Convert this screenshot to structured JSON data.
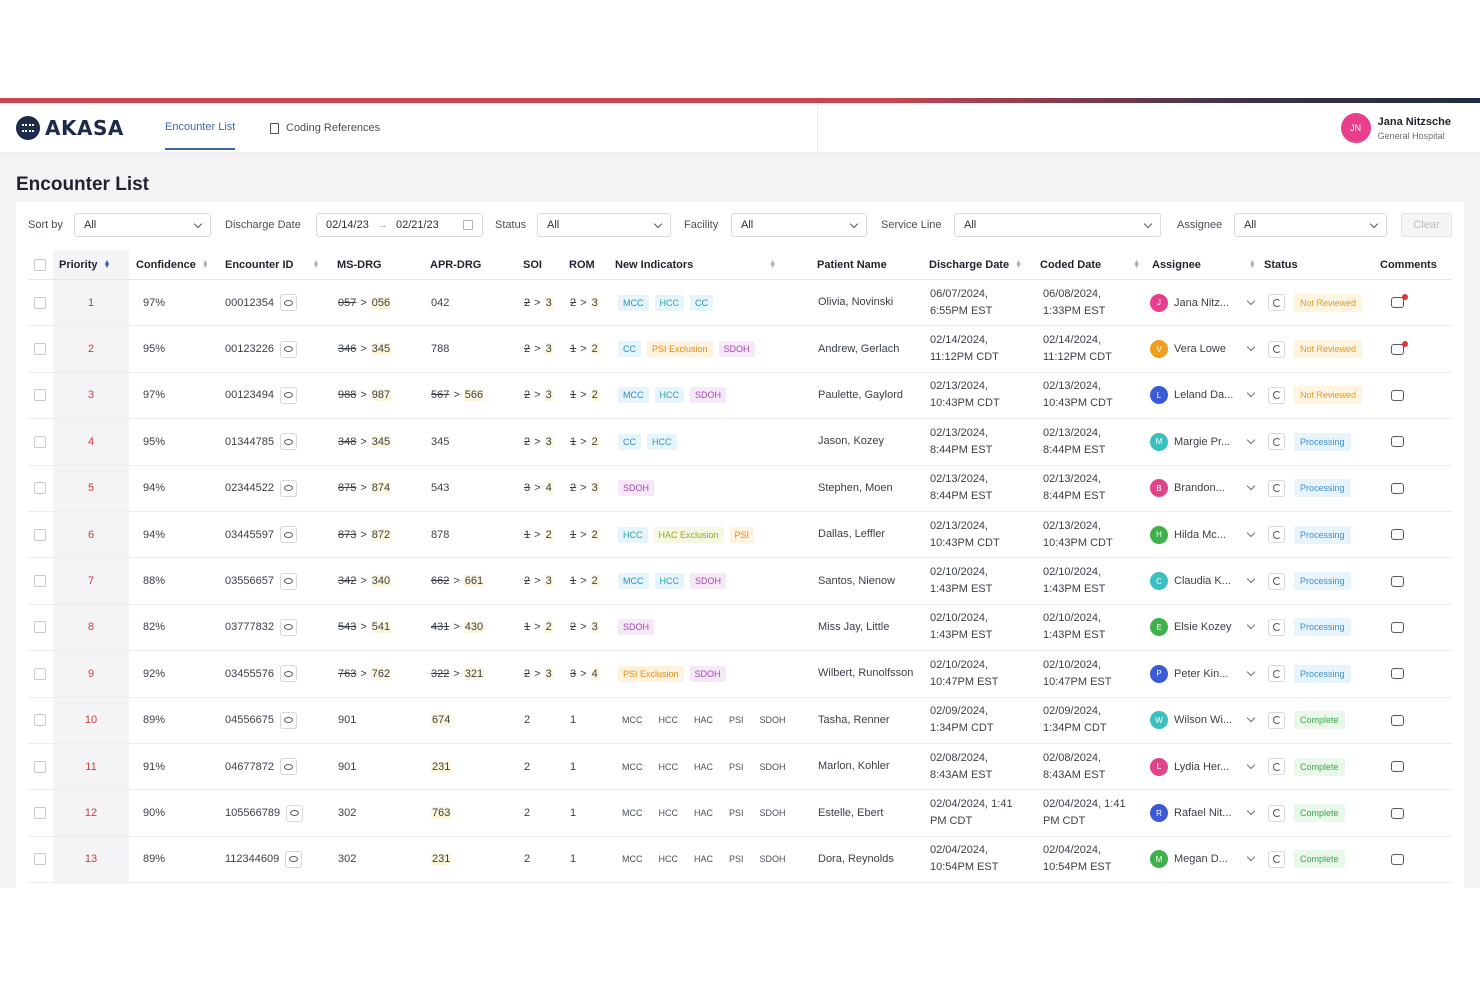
{
  "header": {
    "logo_text": "AKASA",
    "tabs": [
      {
        "label": "Encounter List",
        "active": true
      },
      {
        "label": "Coding References",
        "active": false
      }
    ],
    "user": {
      "initials": "JN",
      "name": "Jana Nitzsche",
      "org": "General Hospital",
      "avatar_color": "#e83e8c"
    }
  },
  "page": {
    "title": "Encounter List"
  },
  "filters": {
    "sort_by": {
      "label": "Sort by",
      "value": "All"
    },
    "discharge_date": {
      "label": "Discharge Date",
      "from": "02/14/23",
      "to": "02/21/23",
      "separator": "→"
    },
    "status": {
      "label": "Status",
      "value": "All"
    },
    "facility": {
      "label": "Facility",
      "value": "All"
    },
    "service_line": {
      "label": "Service Line",
      "value": "All"
    },
    "assignee": {
      "label": "Assignee",
      "value": "All"
    },
    "clear_label": "Clear"
  },
  "table": {
    "columns": [
      "Priority",
      "Confidence",
      "Encounter ID",
      "MS-DRG",
      "APR-DRG",
      "SOI",
      "ROM",
      "New Indicators",
      "Patient Name",
      "Discharge Date",
      "Coded Date",
      "Assignee",
      "Status",
      "Comments"
    ],
    "rows": [
      {
        "priority": "1",
        "confidence": "97%",
        "encounter_id": "00012354",
        "ms_drg": {
          "old": "057",
          "new": "056"
        },
        "apr_drg": {
          "value": "042"
        },
        "soi": {
          "old": "2",
          "new": "3"
        },
        "rom": {
          "old": "2",
          "new": "3"
        },
        "indicators": [
          "MCC",
          "HCC",
          "CC"
        ],
        "patient": "Olivia, Novinski",
        "discharge_date": [
          "06/07/2024,",
          "6:55PM EST"
        ],
        "coded_date": [
          "06/08/2024,",
          "1:33PM EST"
        ],
        "assignee": {
          "initial": "J",
          "name": "Jana Nitz...",
          "color": "#e83e8c"
        },
        "status": "Not Reviewed",
        "comment_alert": true
      },
      {
        "priority": "2",
        "confidence": "95%",
        "encounter_id": "00123226",
        "ms_drg": {
          "old": "346",
          "new": "345"
        },
        "apr_drg": {
          "value": "788"
        },
        "soi": {
          "old": "2",
          "new": "3"
        },
        "rom": {
          "old": "1",
          "new": "2"
        },
        "indicators": [
          "CC",
          "PSI Exclusion",
          "SDOH"
        ],
        "patient": "Andrew, Gerlach",
        "discharge_date": [
          "02/14/2024,",
          "11:12PM CDT"
        ],
        "coded_date": [
          "02/14/2024,",
          "11:12PM CDT"
        ],
        "assignee": {
          "initial": "V",
          "name": "Vera Lowe",
          "color": "#f0a020"
        },
        "status": "Not Reviewed",
        "comment_alert": true
      },
      {
        "priority": "3",
        "confidence": "97%",
        "encounter_id": "00123494",
        "ms_drg": {
          "old": "988",
          "new": "987"
        },
        "apr_drg": {
          "old": "567",
          "new": "566"
        },
        "soi": {
          "old": "2",
          "new": "3"
        },
        "rom": {
          "old": "1",
          "new": "2"
        },
        "indicators": [
          "MCC",
          "HCC",
          "SDOH"
        ],
        "patient": "Paulette, Gaylord",
        "discharge_date": [
          "02/13/2024,",
          "10:43PM CDT"
        ],
        "coded_date": [
          "02/13/2024,",
          "10:43PM CDT"
        ],
        "assignee": {
          "initial": "L",
          "name": "Leland Da...",
          "color": "#3b5bd6"
        },
        "status": "Not Reviewed",
        "comment_alert": false
      },
      {
        "priority": "4",
        "confidence": "95%",
        "encounter_id": "01344785",
        "ms_drg": {
          "old": "348",
          "new": "345"
        },
        "apr_drg": {
          "value": "345"
        },
        "soi": {
          "old": "2",
          "new": "3"
        },
        "rom": {
          "old": "1",
          "new": "2"
        },
        "indicators": [
          "CC",
          "HCC"
        ],
        "patient": "Jason, Kozey",
        "discharge_date": [
          "02/13/2024,",
          "8:44PM EST"
        ],
        "coded_date": [
          "02/13/2024,",
          "8:44PM EST"
        ],
        "assignee": {
          "initial": "M",
          "name": "Margie Pr...",
          "color": "#3cbfbf"
        },
        "status": "Processing",
        "comment_alert": false
      },
      {
        "priority": "5",
        "confidence": "94%",
        "encounter_id": "02344522",
        "ms_drg": {
          "old": "875",
          "new": "874"
        },
        "apr_drg": {
          "value": "543"
        },
        "soi": {
          "old": "3",
          "new": "4"
        },
        "rom": {
          "old": "2",
          "new": "3"
        },
        "indicators": [
          "SDOH"
        ],
        "patient": "Stephen, Moen",
        "discharge_date": [
          "02/13/2024,",
          "8:44PM EST"
        ],
        "coded_date": [
          "02/13/2024,",
          "8:44PM EST"
        ],
        "assignee": {
          "initial": "B",
          "name": "Brandon...",
          "color": "#e0458c"
        },
        "status": "Processing",
        "comment_alert": false
      },
      {
        "priority": "6",
        "confidence": "94%",
        "encounter_id": "03445597",
        "ms_drg": {
          "old": "873",
          "new": "872"
        },
        "apr_drg": {
          "value": "878"
        },
        "soi": {
          "old": "1",
          "new": "2"
        },
        "rom": {
          "old": "1",
          "new": "2"
        },
        "indicators": [
          "HCC",
          "HAC Exclusion",
          "PSI"
        ],
        "patient": "Dallas, Leffler",
        "discharge_date": [
          "02/13/2024,",
          "10:43PM CDT"
        ],
        "coded_date": [
          "02/13/2024,",
          "10:43PM CDT"
        ],
        "assignee": {
          "initial": "H",
          "name": "Hilda Mc...",
          "color": "#3fb04a"
        },
        "status": "Processing",
        "comment_alert": false
      },
      {
        "priority": "7",
        "confidence": "88%",
        "encounter_id": "03556657",
        "ms_drg": {
          "old": "342",
          "new": "340"
        },
        "apr_drg": {
          "old": "662",
          "new": "661"
        },
        "soi": {
          "old": "2",
          "new": "3"
        },
        "rom": {
          "old": "1",
          "new": "2"
        },
        "indicators": [
          "MCC",
          "HCC",
          "SDOH"
        ],
        "patient": "Santos, Nienow",
        "discharge_date": [
          "02/10/2024,",
          "1:43PM EST"
        ],
        "coded_date": [
          "02/10/2024,",
          "1:43PM EST"
        ],
        "assignee": {
          "initial": "C",
          "name": "Claudia K...",
          "color": "#3cbfbf"
        },
        "status": "Processing",
        "comment_alert": false
      },
      {
        "priority": "8",
        "confidence": "82%",
        "encounter_id": "03777832",
        "ms_drg": {
          "old": "543",
          "new": "541"
        },
        "apr_drg": {
          "old": "431",
          "new": "430"
        },
        "soi": {
          "old": "1",
          "new": "2"
        },
        "rom": {
          "old": "2",
          "new": "3"
        },
        "indicators": [
          "SDOH"
        ],
        "patient": "Miss Jay, Little",
        "discharge_date": [
          "02/10/2024,",
          "1:43PM EST"
        ],
        "coded_date": [
          "02/10/2024,",
          "1:43PM EST"
        ],
        "assignee": {
          "initial": "E",
          "name": "Elsie Kozey",
          "color": "#3fb04a"
        },
        "status": "Processing",
        "comment_alert": false
      },
      {
        "priority": "9",
        "confidence": "92%",
        "encounter_id": "03455576",
        "ms_drg": {
          "old": "763",
          "new": "762"
        },
        "apr_drg": {
          "old": "322",
          "new": "321"
        },
        "soi": {
          "old": "2",
          "new": "3"
        },
        "rom": {
          "old": "3",
          "new": "4"
        },
        "indicators": [
          "PSI Exclusion",
          "SDOH"
        ],
        "patient": "Wilbert, Runolfsson",
        "discharge_date": [
          "02/10/2024,",
          "10:47PM EST"
        ],
        "coded_date": [
          "02/10/2024,",
          "10:47PM EST"
        ],
        "assignee": {
          "initial": "P",
          "name": "Peter Kin...",
          "color": "#3b5bd6"
        },
        "status": "Processing",
        "comment_alert": false
      },
      {
        "priority": "10",
        "confidence": "89%",
        "encounter_id": "04556675",
        "ms_drg": {
          "value": "901"
        },
        "apr_drg": {
          "value": "674",
          "highlight": true
        },
        "soi": {
          "value": "2"
        },
        "rom": {
          "value": "1"
        },
        "indicators_plain": [
          "MCC",
          "HCC",
          "HAC",
          "PSI",
          "SDOH"
        ],
        "patient": "Tasha, Renner",
        "discharge_date": [
          "02/09/2024,",
          "1:34PM CDT"
        ],
        "coded_date": [
          "02/09/2024,",
          "1:34PM CDT"
        ],
        "assignee": {
          "initial": "W",
          "name": "Wilson Wi...",
          "color": "#3cbfbf"
        },
        "status": "Complete",
        "comment_alert": false
      },
      {
        "priority": "11",
        "confidence": "91%",
        "encounter_id": "04677872",
        "ms_drg": {
          "value": "901"
        },
        "apr_drg": {
          "value": "231",
          "highlight": true
        },
        "soi": {
          "value": "2"
        },
        "rom": {
          "value": "1"
        },
        "indicators_plain": [
          "MCC",
          "HCC",
          "HAC",
          "PSI",
          "SDOH"
        ],
        "patient": "Marlon, Kohler",
        "discharge_date": [
          "02/08/2024,",
          "8:43AM EST"
        ],
        "coded_date": [
          "02/08/2024,",
          "8:43AM EST"
        ],
        "assignee": {
          "initial": "L",
          "name": "Lydia Her...",
          "color": "#e0458c"
        },
        "status": "Complete",
        "comment_alert": false
      },
      {
        "priority": "12",
        "confidence": "90%",
        "encounter_id": "105566789",
        "ms_drg": {
          "value": "302"
        },
        "apr_drg": {
          "value": "763",
          "highlight": true
        },
        "soi": {
          "value": "2"
        },
        "rom": {
          "value": "1"
        },
        "indicators_plain": [
          "MCC",
          "HCC",
          "HAC",
          "PSI",
          "SDOH"
        ],
        "patient": "Estelle, Ebert",
        "discharge_date": [
          "02/04/2024, 1:41",
          "PM CDT"
        ],
        "coded_date": [
          "02/04/2024, 1:41",
          "PM CDT"
        ],
        "assignee": {
          "initial": "R",
          "name": "Rafael Nit...",
          "color": "#3b5bd6"
        },
        "status": "Complete",
        "comment_alert": false
      },
      {
        "priority": "13",
        "confidence": "89%",
        "encounter_id": "112344609",
        "ms_drg": {
          "value": "302"
        },
        "apr_drg": {
          "value": "231",
          "highlight": true
        },
        "soi": {
          "value": "2"
        },
        "rom": {
          "value": "1"
        },
        "indicators_plain": [
          "MCC",
          "HCC",
          "HAC",
          "PSI",
          "SDOH"
        ],
        "patient": "Dora, Reynolds",
        "discharge_date": [
          "02/04/2024,",
          "10:54PM EST"
        ],
        "coded_date": [
          "02/04/2024,",
          "10:54PM EST"
        ],
        "assignee": {
          "initial": "M",
          "name": "Megan D...",
          "color": "#3fb04a"
        },
        "status": "Complete",
        "comment_alert": false
      }
    ]
  },
  "colors": {
    "accent": "#c8454f",
    "brand_navy": "#1d2b4a",
    "link_blue": "#3f69a8",
    "priority_red": "#d23b3b"
  }
}
